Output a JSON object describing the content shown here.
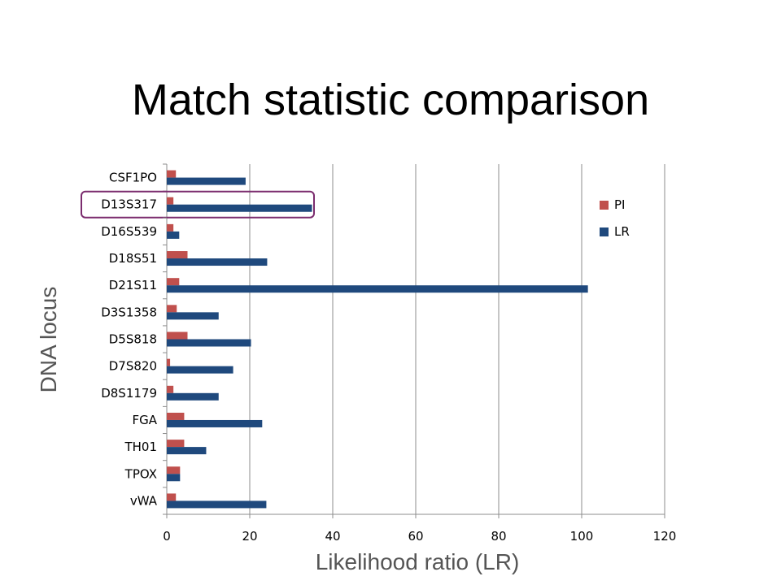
{
  "slide": {
    "title": "Match statistic comparison"
  },
  "chart_data": {
    "type": "bar",
    "orientation": "horizontal",
    "ylabel": "DNA locus",
    "xlabel": "Likelihood ratio (LR)",
    "xlim": [
      0,
      120
    ],
    "x_ticks": [
      "0\u001e",
      "20\u001e",
      "40\u001e",
      "60\u001e",
      "80\u001e",
      "100\u001e",
      "120\u001e"
    ],
    "grid": "vertical",
    "legend_position": "right",
    "categories": [
      "CSF1PO\u001e",
      "D13S317\u001e",
      "D16S539\u001e",
      "D18S51\u001e",
      "D21S11\u001e",
      "D3S1358\u001e",
      "D5S818\u001e",
      "D7S820\u001e",
      "D8S1179\u001e",
      "FGA\u001e",
      "TH01\u001e",
      "TPOX\u001e",
      "vWA\u001e"
    ],
    "series": [
      {
        "name": "PI\u001e",
        "color": "#c0504d",
        "values": [
          2.2,
          1.6,
          1.6,
          5,
          3,
          2.4,
          5,
          0.8,
          1.6,
          4.2,
          4.2,
          3.2,
          2.2
        ]
      },
      {
        "name": "LR\u001e",
        "color": "#1f497d",
        "values": [
          19,
          35,
          3,
          24.2,
          101.5,
          12.5,
          20.3,
          16,
          12.5,
          23,
          9.5,
          3.2,
          24
        ]
      }
    ],
    "highlight": {
      "category": "D13S317\u001e",
      "color": "#7b2c6e"
    }
  }
}
